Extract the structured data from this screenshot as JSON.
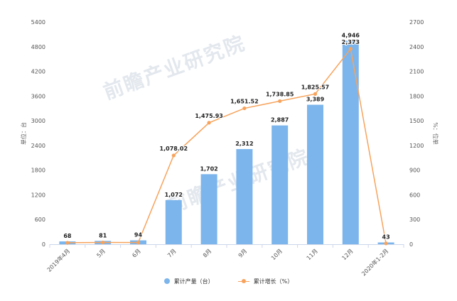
{
  "chart_data": {
    "type": "bar",
    "categories": [
      "2019年4月",
      "5月",
      "6月",
      "7月",
      "8月",
      "9月",
      "10月",
      "11月",
      "12月",
      "2020年1-2月"
    ],
    "series": [
      {
        "name": "累计产量（台）",
        "type": "bar",
        "axis": "left",
        "values": [
          68,
          81,
          94,
          1072,
          1702,
          2312,
          2887,
          3389,
          4946,
          43
        ],
        "labels": [
          "68",
          "81",
          "94",
          "1,072",
          "1,702",
          "2,312",
          "2,887",
          "3,389",
          "4,946",
          "43"
        ],
        "color": "#7cb5ec"
      },
      {
        "name": "累计增长（%）",
        "type": "line",
        "axis": "right",
        "values": [
          18,
          22,
          20,
          1078.02,
          1475.93,
          1651.52,
          1738.85,
          1825.57,
          2373,
          10
        ],
        "labels": [
          "",
          "",
          "",
          "1,078.02",
          "1,475.93",
          "1,651.52",
          "1,738.85",
          "1,825.57",
          "2,373",
          ""
        ],
        "color": "#f7a35c"
      }
    ],
    "ylabel": "单位：台",
    "ylabel_right": "%：位单",
    "ylim": [
      0,
      5400
    ],
    "ylim_right": [
      0,
      2700
    ],
    "yticks": [
      0,
      600,
      1200,
      1800,
      2400,
      3000,
      3600,
      4200,
      4800,
      5400
    ],
    "yticks_right": [
      0,
      300,
      600,
      900,
      1200,
      1500,
      1800,
      2100,
      2400,
      2700
    ],
    "legend_position": "bottom-center",
    "grid": false,
    "watermark": "前瞻产业研究院"
  }
}
